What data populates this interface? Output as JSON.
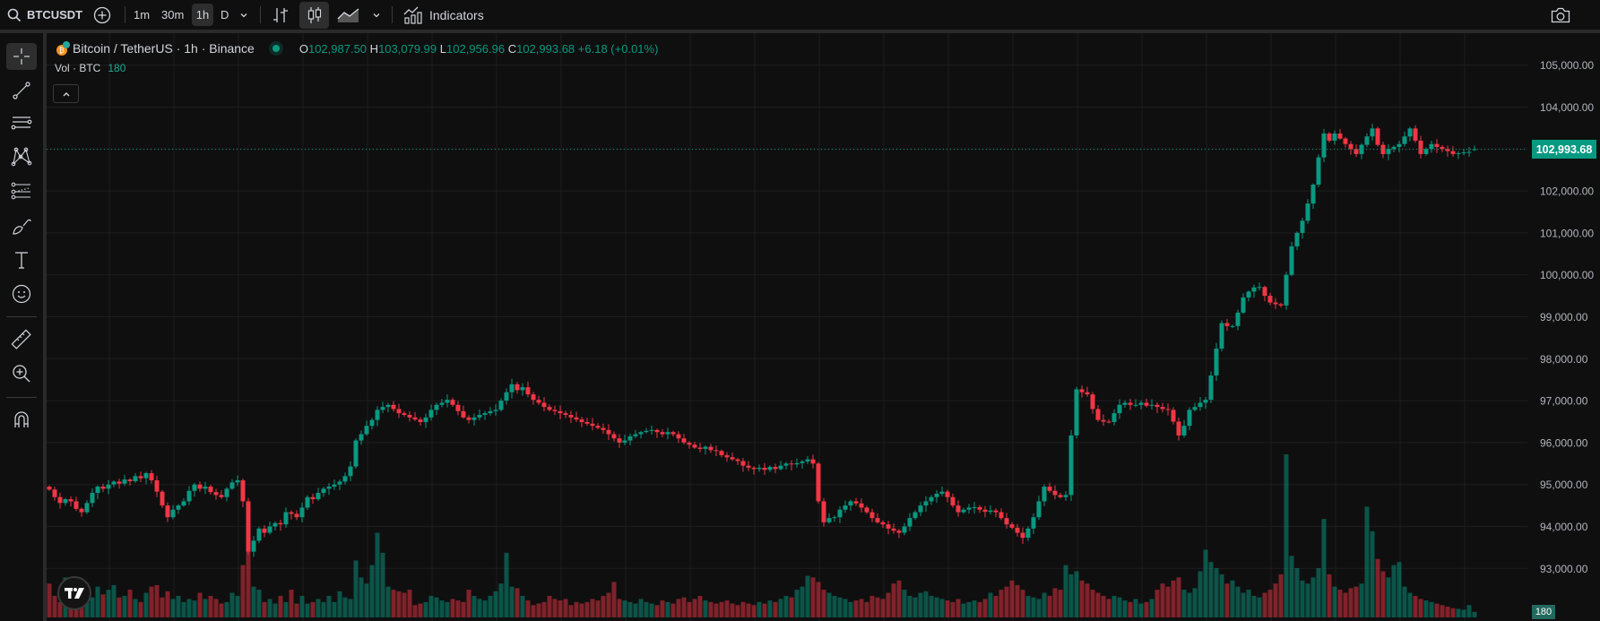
{
  "toolbar": {
    "symbol": "BTCUSDT",
    "intervals": [
      "1m",
      "30m",
      "1h",
      "D"
    ],
    "active_interval": "1h",
    "chart_style": "candles",
    "indicators_label": "Indicators"
  },
  "legend": {
    "title": "Bitcoin / TetherUS · 1h · Binance",
    "o_label": "O",
    "o": "102,987.50",
    "h_label": "H",
    "h": "103,079.99",
    "l_label": "L",
    "l": "102,956.96",
    "c_label": "C",
    "c": "102,993.68",
    "change": "+6.18 (+0.01%)"
  },
  "volume_legend": {
    "label": "Vol · BTC",
    "value": "180"
  },
  "price_axis": {
    "ticks": [
      "105,000.00",
      "104,000.00",
      "103,000.00",
      "102,000.00",
      "101,000.00",
      "100,000.00",
      "99,000.00",
      "98,000.00",
      "97,000.00",
      "96,000.00",
      "95,000.00",
      "94,000.00",
      "93,000.00"
    ],
    "current_price": "102,993.68",
    "current_volume": "180"
  },
  "colors": {
    "up": "#089981",
    "down": "#f23645",
    "background": "#0f0f0f",
    "grid": "#1e1e1e"
  },
  "chart_data": {
    "type": "candlestick",
    "interval": "1h",
    "ylim": [
      92300,
      105500
    ],
    "grid": true,
    "close": [
      94880,
      94700,
      94560,
      94650,
      94600,
      94420,
      94340,
      94560,
      94800,
      94950,
      94900,
      95000,
      95070,
      95020,
      95120,
      95080,
      95200,
      95150,
      95270,
      95100,
      94830,
      94500,
      94220,
      94400,
      94500,
      94600,
      94850,
      95000,
      94900,
      94950,
      94820,
      94750,
      94700,
      94900,
      95050,
      95100,
      94600,
      93400,
      93660,
      93950,
      93850,
      94000,
      94080,
      94050,
      94340,
      94300,
      94220,
      94450,
      94700,
      94650,
      94800,
      94900,
      94950,
      95000,
      95070,
      95200,
      95430,
      96050,
      96200,
      96400,
      96540,
      96780,
      96850,
      96900,
      96800,
      96700,
      96660,
      96600,
      96550,
      96490,
      96600,
      96780,
      96900,
      96950,
      97020,
      96900,
      96750,
      96600,
      96540,
      96600,
      96660,
      96700,
      96750,
      96780,
      97000,
      97200,
      97390,
      97250,
      97320,
      97150,
      97020,
      96950,
      96850,
      96780,
      96750,
      96700,
      96660,
      96600,
      96550,
      96490,
      96450,
      96400,
      96350,
      96300,
      96200,
      96100,
      96000,
      96050,
      96150,
      96200,
      96250,
      96280,
      96300,
      96250,
      96200,
      96250,
      96200,
      96100,
      96000,
      95950,
      95880,
      95850,
      95900,
      95820,
      95800,
      95700,
      95650,
      95600,
      95560,
      95450,
      95400,
      95370,
      95400,
      95350,
      95420,
      95370,
      95450,
      95500,
      95480,
      95510,
      95550,
      95600,
      95500,
      94600,
      94100,
      94200,
      94220,
      94400,
      94500,
      94600,
      94550,
      94450,
      94340,
      94200,
      94100,
      94050,
      93950,
      93900,
      93850,
      94000,
      94200,
      94340,
      94500,
      94600,
      94700,
      94780,
      94830,
      94700,
      94500,
      94340,
      94400,
      94450,
      94460,
      94400,
      94350,
      94380,
      94340,
      94200,
      94050,
      93970,
      93850,
      93730,
      93950,
      94220,
      94600,
      94950,
      94850,
      94750,
      94700,
      94750,
      96170,
      97270,
      97200,
      97150,
      96800,
      96540,
      96500,
      96490,
      96700,
      96900,
      96950,
      96900,
      96900,
      96950,
      96880,
      96900,
      96850,
      96800,
      96780,
      96500,
      96170,
      96400,
      96780,
      96850,
      96950,
      97020,
      97600,
      98240,
      98850,
      98780,
      98780,
      99100,
      99460,
      99600,
      99700,
      99710,
      99500,
      99340,
      99300,
      99270,
      100000,
      100680,
      101000,
      101290,
      101700,
      102150,
      102800,
      103370,
      103200,
      103370,
      103250,
      103120,
      103000,
      102880,
      103100,
      103300,
      103490,
      103100,
      102880,
      103000,
      103050,
      103120,
      103300,
      103490,
      103200,
      102880,
      103000,
      103120,
      103050,
      103000,
      102950,
      102880,
      102900,
      102920,
      102930,
      102993.68
    ],
    "volume": [
      1100,
      700,
      500,
      1300,
      900,
      600,
      500,
      700,
      650,
      1000,
      750,
      900,
      1050,
      650,
      700,
      900,
      600,
      500,
      800,
      1000,
      1050,
      650,
      850,
      600,
      700,
      500,
      600,
      550,
      800,
      600,
      700,
      600,
      450,
      500,
      800,
      700,
      1700,
      3100,
      1000,
      900,
      500,
      600,
      450,
      700,
      500,
      900,
      450,
      700,
      450,
      500,
      600,
      500,
      700,
      500,
      850,
      650,
      600,
      1850,
      1300,
      1100,
      1700,
      2750,
      2100,
      1000,
      900,
      850,
      800,
      900,
      400,
      450,
      500,
      700,
      650,
      550,
      500,
      600,
      550,
      500,
      900,
      700,
      600,
      550,
      700,
      850,
      1100,
      2100,
      1000,
      950,
      700,
      550,
      400,
      450,
      500,
      700,
      600,
      550,
      600,
      400,
      500,
      450,
      500,
      600,
      550,
      700,
      800,
      1150,
      600,
      550,
      500,
      450,
      600,
      500,
      450,
      400,
      550,
      500,
      450,
      600,
      650,
      500,
      600,
      700,
      550,
      500,
      450,
      500,
      550,
      450,
      400,
      500,
      450,
      400,
      500,
      450,
      550,
      500,
      600,
      700,
      650,
      900,
      1000,
      1350,
      1300,
      1150,
      900,
      800,
      700,
      650,
      600,
      500,
      550,
      600,
      500,
      700,
      650,
      600,
      800,
      1100,
      1200,
      900,
      700,
      650,
      800,
      850,
      700,
      650,
      600,
      550,
      500,
      600,
      450,
      500,
      550,
      500,
      600,
      800,
      700,
      900,
      1000,
      1200,
      1050,
      900,
      700,
      650,
      600,
      800,
      700,
      950,
      900,
      1700,
      1400,
      1500,
      1200,
      1100,
      900,
      800,
      700,
      600,
      700,
      650,
      550,
      500,
      600,
      450,
      500,
      600,
      900,
      1100,
      1000,
      1200,
      1300,
      900,
      800,
      950,
      1500,
      2200,
      1800,
      1600,
      1400,
      1100,
      1200,
      1000,
      800,
      900,
      700,
      650,
      800,
      900,
      1100,
      1400,
      5300,
      2000,
      1600,
      1200,
      1100,
      1300,
      1600,
      3200,
      1400,
      1000,
      900,
      800,
      950,
      1000,
      1100,
      3600,
      2800,
      1900,
      1500,
      1300,
      1700,
      1800,
      1000,
      800,
      700,
      600,
      550,
      500,
      450,
      400,
      350,
      300,
      280,
      250,
      400,
      180
    ],
    "last_candle": {
      "open": 102987.5,
      "high": 103079.99,
      "low": 102956.96,
      "close": 102993.68,
      "volume": 180
    }
  }
}
